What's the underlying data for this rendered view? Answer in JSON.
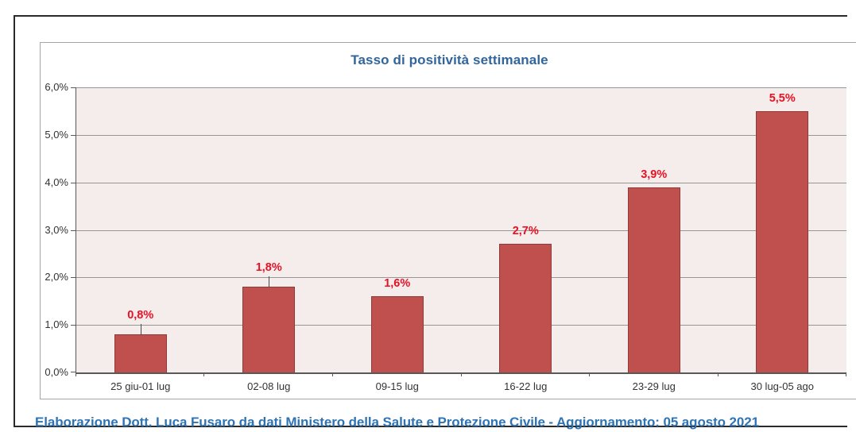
{
  "chart": {
    "title": "Tasso di positività settimanale",
    "caption": "Elaborazione Dott. Luca Fusaro da dati Ministero della Salute e Protezione Civile - Aggiornamento: 05 agosto 2021"
  },
  "chart_data": {
    "type": "bar",
    "title": "Tasso di positività settimanale",
    "categories": [
      "25 giu-01 lug",
      "02-08 lug",
      "09-15 lug",
      "16-22 lug",
      "23-29 lug",
      "30 lug-05 ago"
    ],
    "values": [
      0.8,
      1.8,
      1.6,
      2.7,
      3.9,
      5.5
    ],
    "data_labels": [
      "0,8%",
      "1,8%",
      "1,6%",
      "2,7%",
      "3,9%",
      "5,5%"
    ],
    "leader_lines": [
      true,
      true,
      false,
      false,
      false,
      false
    ],
    "xlabel": "",
    "ylabel": "",
    "ylim": [
      0,
      6
    ],
    "ytick_labels": [
      "0,0%",
      "1,0%",
      "2,0%",
      "3,0%",
      "4,0%",
      "5,0%",
      "6,0%"
    ],
    "grid": true,
    "legend": "none"
  },
  "colors": {
    "outer_border": "#2b2b2b",
    "chart_border": "#a6a6a6",
    "plot_bg": "#f5ecec",
    "gridline": "#969696",
    "axis": "#595959",
    "axis_label": "#333333",
    "bar_fill": "#c0504d",
    "bar_border": "#8e3b38",
    "data_label": "#e81123",
    "leader": "#4a4a4a",
    "title_text": "#31659c",
    "caption_text": "#2e74b5"
  }
}
